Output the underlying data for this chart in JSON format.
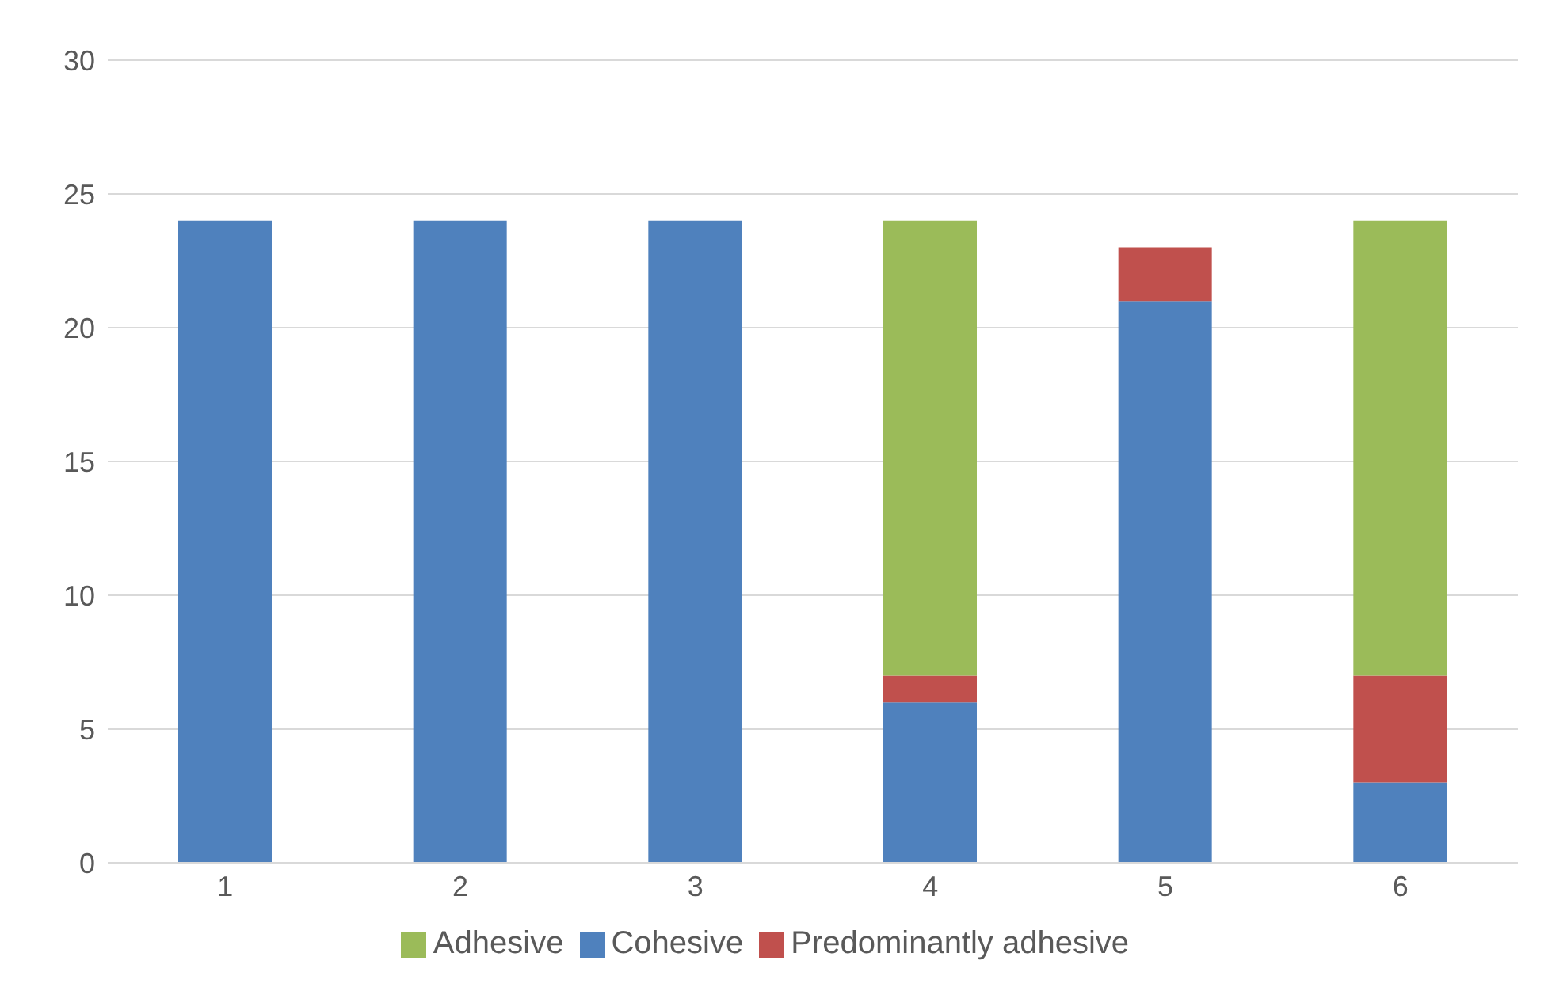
{
  "chart_data": {
    "type": "bar",
    "stacked": true,
    "categories": [
      "1",
      "2",
      "3",
      "4",
      "5",
      "6"
    ],
    "series": [
      {
        "name": "Cohesive",
        "color": "#4f81bd",
        "values": [
          24,
          24,
          24,
          6,
          21,
          3
        ]
      },
      {
        "name": "Predominantly adhesive",
        "color": "#c0504d",
        "values": [
          0,
          0,
          0,
          1,
          2,
          4
        ]
      },
      {
        "name": "Adhesive",
        "color": "#9bbb59",
        "values": [
          0,
          0,
          0,
          17,
          0,
          17
        ]
      }
    ],
    "ylim": [
      0,
      30
    ],
    "yticks": [
      0,
      5,
      10,
      15,
      20,
      25,
      30
    ],
    "grid": "y",
    "legend": "bottom"
  }
}
